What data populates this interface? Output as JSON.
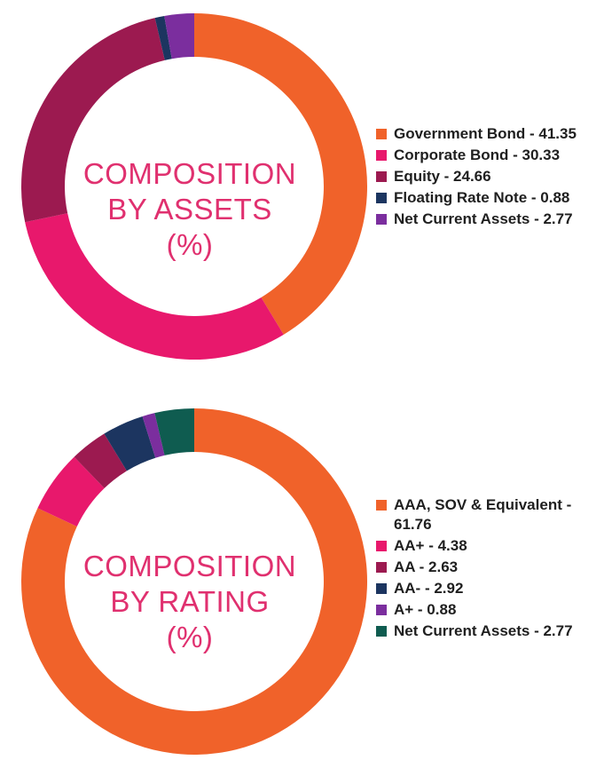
{
  "chart_data": [
    {
      "type": "pie",
      "title": "COMPOSITION BY ASSETS (%)",
      "title_lines": [
        "COMPOSITION",
        "BY ASSETS",
        "(%)"
      ],
      "legend_position": "right",
      "categories": [
        "Government Bond",
        "Corporate Bond",
        "Equity",
        "Floating Rate Note",
        "Net Current Assets"
      ],
      "values": [
        41.35,
        30.33,
        24.66,
        0.88,
        2.77
      ],
      "colors": [
        "#f0622a",
        "#e8186c",
        "#9c1a50",
        "#1c3560",
        "#7b2e9e"
      ],
      "legend_labels": [
        "Government Bond - 41.35",
        "Corporate Bond - 30.33",
        "Equity - 24.66",
        "Floating Rate Note - 0.88",
        "Net Current Assets - 2.77"
      ]
    },
    {
      "type": "pie",
      "title": "COMPOSITION BY RATING (%)",
      "title_lines": [
        "COMPOSITION",
        "BY RATING",
        "(%)"
      ],
      "legend_position": "right",
      "categories": [
        "AAA, SOV & Equivalent",
        "AA+",
        "AA",
        "AA-",
        "A+",
        "Net Current Assets"
      ],
      "values": [
        61.76,
        4.38,
        2.63,
        2.92,
        0.88,
        2.77
      ],
      "colors": [
        "#f0622a",
        "#e8186c",
        "#9c1a50",
        "#1c3560",
        "#7b2e9e",
        "#0f5c50"
      ],
      "legend_labels": [
        "AAA, SOV & Equivalent - 61.76",
        "AA+ - 4.38",
        "AA - 2.63",
        "AA- - 2.92",
        "A+ - 0.88",
        "Net Current Assets - 2.77"
      ]
    }
  ]
}
